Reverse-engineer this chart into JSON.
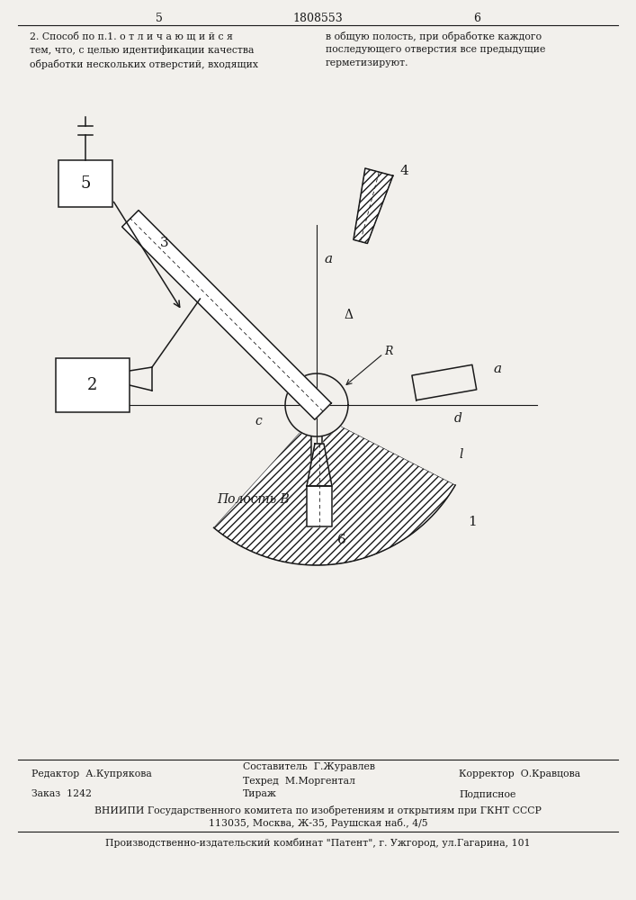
{
  "bg_color": "#f2f0ec",
  "line_color": "#1a1a1a",
  "figw": 7.07,
  "figh": 10.0,
  "page_num_left": "5",
  "page_num_center": "1808553",
  "page_num_right": "6",
  "text_claim_left": "2. Способ по п.1. о т л и ч а ю щ и й с я\nтем, что, с целью идентификации качества\nобработки нескольких отверстий, входящих",
  "text_claim_right": "в общую полость, при обработке каждого\nпоследующего отверстия все предыдущие\nгерметизируют.",
  "footer_editor": "Редактор  А.Купрякова",
  "footer_comp": "Составитель  Г.Журавлев",
  "footer_tech": "Техред  М.Моргентал",
  "footer_corr": "Корректор  О.Кравцова",
  "footer_order": "Заказ  1242",
  "footer_tiraz": "Тираж",
  "footer_podp": "Подписное",
  "footer_vniip": "ВНИИПИ Государственного комитета по изобретениям и открытиям при ГКНТ СССР",
  "footer_addr": "113035, Москва, Ж-35, Раушская наб., 4/5",
  "footer_izdat": "Производственно-издательский комбинат \"Патент\", г. Ужгород, ул.Гагарина, 101"
}
